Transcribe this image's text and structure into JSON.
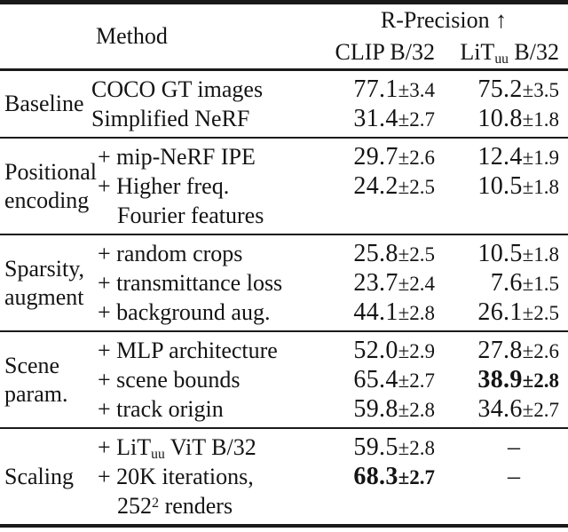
{
  "style": {
    "background": "#ffffff",
    "text_color": "#141414",
    "rule_color": "#1a1a1a"
  },
  "header": {
    "method_label": "Method",
    "metric_group": "R-Precision ↑",
    "col_clip": "CLIP B/32",
    "col_lit": {
      "pre": "LiT",
      "sub": "uu",
      "post": " B/32"
    }
  },
  "sections": [
    {
      "label": [
        "Baseline"
      ],
      "rows": [
        {
          "method": "COCO GT images",
          "clip": "77.1",
          "clip_err": "±3.4",
          "lit": "75.2",
          "lit_err": "±3.5"
        },
        {
          "method": "Simplified NeRF",
          "clip": "31.4",
          "clip_err": "±2.7",
          "lit": "10.8",
          "lit_err": "±1.8"
        }
      ]
    },
    {
      "label": [
        "Positional",
        "encoding"
      ],
      "rows": [
        {
          "method": "+ mip-NeRF IPE",
          "clip": "29.7",
          "clip_err": "±2.6",
          "lit": "12.4",
          "lit_err": "±1.9"
        },
        {
          "method": "+ Higher freq.",
          "clip": "24.2",
          "clip_err": "±2.5",
          "lit": "10.5",
          "lit_err": "±1.8"
        },
        {
          "method_cont": "Fourier features"
        }
      ]
    },
    {
      "label": [
        "Sparsity,",
        "augment"
      ],
      "rows": [
        {
          "method": "+ random crops",
          "clip": "25.8",
          "clip_err": "±2.5",
          "lit": "10.5",
          "lit_err": "±1.8"
        },
        {
          "method": "+ transmittance loss",
          "clip": "23.7",
          "clip_err": "±2.4",
          "lit": "7.6",
          "lit_err": "±1.5"
        },
        {
          "method": "+ background aug.",
          "clip": "44.1",
          "clip_err": "±2.8",
          "lit": "26.1",
          "lit_err": "±2.5"
        }
      ]
    },
    {
      "label": [
        "Scene",
        "param."
      ],
      "rows": [
        {
          "method": "+ MLP architecture",
          "clip": "52.0",
          "clip_err": "±2.9",
          "lit": "27.8",
          "lit_err": "±2.6"
        },
        {
          "method": "+ scene bounds",
          "clip": "65.4",
          "clip_err": "±2.7",
          "lit": "38.9",
          "lit_err": "±2.8",
          "lit_bold": true
        },
        {
          "method": "+ track origin",
          "clip": "59.8",
          "clip_err": "±2.8",
          "lit": "34.6",
          "lit_err": "±2.7"
        }
      ]
    },
    {
      "label": [
        "Scaling"
      ],
      "rows": [
        {
          "method_parts": {
            "pre": "+ LiT",
            "sub": "uu",
            "post": " ViT B/32"
          },
          "clip": "59.5",
          "clip_err": "±2.8",
          "lit_dash": "–"
        },
        {
          "method": "+ 20K iterations,",
          "clip": "68.3",
          "clip_err": "±2.7",
          "clip_bold": true,
          "lit_dash": "–"
        },
        {
          "cont_parts": {
            "pre": "252",
            "sup": "2",
            "post": " renders"
          }
        }
      ]
    }
  ]
}
